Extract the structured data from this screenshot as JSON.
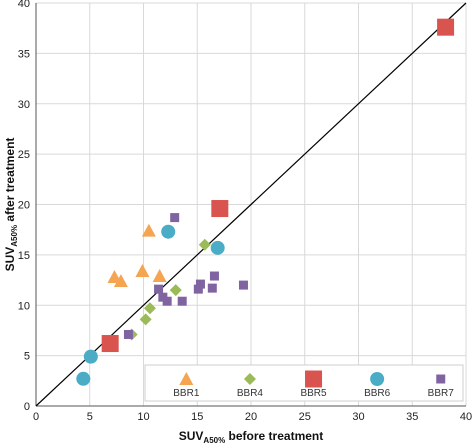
{
  "chart_data": {
    "type": "scatter",
    "xlabel": {
      "main": "SUV",
      "sub": "A50%",
      "rest": " before treatment"
    },
    "ylabel": {
      "main": "SUV",
      "sub": "A50%",
      "rest": " after treatment"
    },
    "xlim": [
      0,
      40
    ],
    "ylim": [
      0,
      40
    ],
    "xticks": [
      0,
      5,
      10,
      15,
      20,
      25,
      30,
      35,
      40
    ],
    "yticks": [
      0,
      5,
      10,
      15,
      20,
      25,
      30,
      35,
      40
    ],
    "grid": true,
    "identity_line": true,
    "legend_position": "bottom-right, inside",
    "series": [
      {
        "name": "BBR1",
        "marker": "triangle",
        "color": "#F5A451",
        "points": [
          [
            7.3,
            12.8
          ],
          [
            7.9,
            12.4
          ],
          [
            10.5,
            17.4
          ],
          [
            9.9,
            13.4
          ],
          [
            11.5,
            12.9
          ]
        ]
      },
      {
        "name": "BBR4",
        "marker": "diamond",
        "color": "#9BBB59",
        "points": [
          [
            8.9,
            7.1
          ],
          [
            10.2,
            8.6
          ],
          [
            10.6,
            9.7
          ],
          [
            13.0,
            11.5
          ],
          [
            15.7,
            16.0
          ]
        ]
      },
      {
        "name": "BBR5",
        "marker": "square-large",
        "color": "#D9534F",
        "points": [
          [
            6.9,
            6.2
          ],
          [
            17.1,
            19.6
          ],
          [
            38.1,
            37.6
          ]
        ]
      },
      {
        "name": "BBR6",
        "marker": "circle",
        "color": "#4BACC6",
        "points": [
          [
            4.4,
            2.7
          ],
          [
            5.1,
            4.9
          ],
          [
            12.3,
            17.3
          ],
          [
            16.9,
            15.7
          ]
        ]
      },
      {
        "name": "BBR7",
        "marker": "square-small",
        "color": "#8064A2",
        "points": [
          [
            8.6,
            7.1
          ],
          [
            11.4,
            11.6
          ],
          [
            11.8,
            10.8
          ],
          [
            12.2,
            10.4
          ],
          [
            13.6,
            10.4
          ],
          [
            15.3,
            12.1
          ],
          [
            15.1,
            11.6
          ],
          [
            16.4,
            11.7
          ],
          [
            16.6,
            12.9
          ],
          [
            19.3,
            12.0
          ],
          [
            12.9,
            18.7
          ]
        ]
      }
    ]
  }
}
